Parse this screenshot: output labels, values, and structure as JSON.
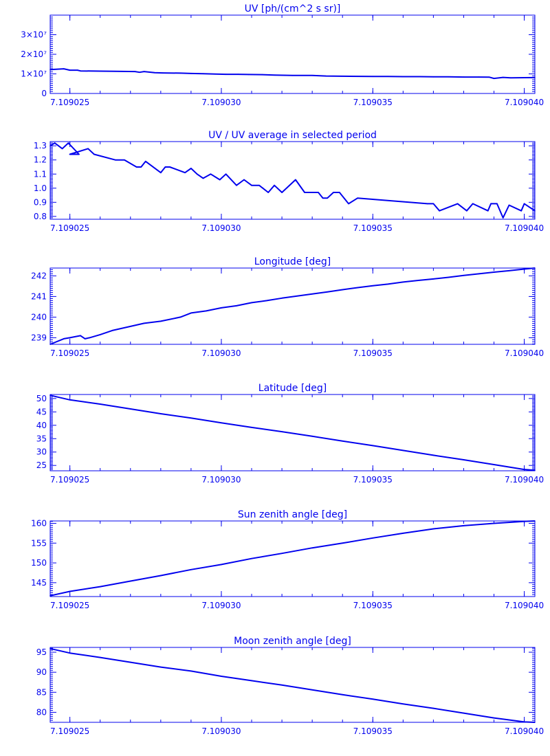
{
  "chart_data": [
    {
      "type": "line",
      "title": "UV [ph/(cm^2 s sr)]",
      "x_tick_labels": [
        "7.109025",
        "7.109030",
        "7.109035",
        "7.109040"
      ],
      "x_ticks": [
        7.109025,
        7.10903,
        7.109035,
        7.10904
      ],
      "xlim": [
        7.10902435,
        7.10904035
      ],
      "ylim": [
        0,
        40000000
      ],
      "y_tick_labels": [
        "0",
        "1×10⁷",
        "2×10⁷",
        "3×10⁷"
      ],
      "y_ticks": [
        0,
        10000000,
        20000000,
        30000000
      ],
      "x": [
        7.10902435,
        7.1090248,
        7.109025,
        7.10902525,
        7.10902535,
        7.109026,
        7.1090265,
        7.10902715,
        7.1090273,
        7.10902745,
        7.1090278,
        7.10902805,
        7.10902865,
        7.109029,
        7.1090294,
        7.1090298,
        7.10903015,
        7.10903055,
        7.1090309,
        7.10903135,
        7.10903175,
        7.10903235,
        7.109033,
        7.10903345,
        7.10903395,
        7.109035,
        7.1090355,
        7.109036,
        7.10903655,
        7.109037,
        7.1090375,
        7.109038,
        7.1090385,
        7.10903885,
        7.109039,
        7.1090393,
        7.10903955,
        7.10904035
      ],
      "values": [
        12200000,
        12600000,
        11900000,
        11900000,
        11500000,
        11400000,
        11300000,
        11200000,
        10800000,
        11200000,
        10600000,
        10500000,
        10400000,
        10200000,
        10100000,
        9900000,
        9800000,
        9800000,
        9700000,
        9600000,
        9400000,
        9200000,
        9200000,
        8900000,
        8800000,
        8700000,
        8700000,
        8600000,
        8600000,
        8500000,
        8500000,
        8400000,
        8400000,
        8300000,
        7700000,
        8200000,
        8000000,
        8100000
      ]
    },
    {
      "type": "line",
      "title": "UV / UV average in selected period",
      "x_tick_labels": [
        "7.109025",
        "7.109030",
        "7.109035",
        "7.109040"
      ],
      "x_ticks": [
        7.109025,
        7.10903,
        7.109035,
        7.10904
      ],
      "xlim": [
        7.10902435,
        7.10904035
      ],
      "ylim": [
        0.78,
        1.33
      ],
      "y_tick_labels": [
        "0.8",
        "0.9",
        "1.0",
        "1.1",
        "1.2",
        "1.3"
      ],
      "y_ticks": [
        0.8,
        0.9,
        1.0,
        1.1,
        1.2,
        1.3
      ],
      "x": [
        7.10902435,
        7.1090245,
        7.10902475,
        7.10902495,
        7.1090253,
        7.109025,
        7.1090256,
        7.1090258,
        7.1090265,
        7.1090268,
        7.1090272,
        7.10902735,
        7.1090275,
        7.109028,
        7.10902815,
        7.1090283,
        7.1090288,
        7.109029,
        7.1090292,
        7.1090294,
        7.10902965,
        7.10902995,
        7.10903015,
        7.1090305,
        7.10903075,
        7.109031,
        7.10903125,
        7.10903155,
        7.10903175,
        7.109032,
        7.10903245,
        7.10903275,
        7.1090332,
        7.10903335,
        7.1090335,
        7.1090337,
        7.1090339,
        7.1090342,
        7.1090345,
        7.1090368,
        7.109037,
        7.1090372,
        7.1090378,
        7.1090381,
        7.1090383,
        7.1090388,
        7.1090389,
        7.1090391,
        7.1090393,
        7.1090395,
        7.1090399,
        7.10904,
        7.10904035
      ],
      "values": [
        1.3,
        1.32,
        1.28,
        1.32,
        1.24,
        1.24,
        1.28,
        1.24,
        1.2,
        1.2,
        1.15,
        1.15,
        1.19,
        1.11,
        1.15,
        1.15,
        1.11,
        1.14,
        1.1,
        1.07,
        1.1,
        1.06,
        1.1,
        1.02,
        1.06,
        1.02,
        1.02,
        0.97,
        1.02,
        0.97,
        1.06,
        0.97,
        0.97,
        0.93,
        0.93,
        0.97,
        0.97,
        0.89,
        0.93,
        0.89,
        0.89,
        0.84,
        0.89,
        0.84,
        0.89,
        0.84,
        0.89,
        0.89,
        0.79,
        0.88,
        0.84,
        0.89,
        0.84
      ]
    },
    {
      "type": "line",
      "title": "Longitude [deg]",
      "x_tick_labels": [
        "7.109025",
        "7.109030",
        "7.109035",
        "7.109040"
      ],
      "x_ticks": [
        7.109025,
        7.10903,
        7.109035,
        7.10904
      ],
      "xlim": [
        7.10902435,
        7.10904035
      ],
      "ylim": [
        238.68,
        242.38
      ],
      "y_tick_labels": [
        "239",
        "240",
        "241",
        "242"
      ],
      "y_ticks": [
        239,
        240,
        241,
        242
      ],
      "x": [
        7.10902435,
        7.1090248,
        7.109025,
        7.10902535,
        7.1090255,
        7.10902565,
        7.109026,
        7.1090264,
        7.109027,
        7.10902745,
        7.109028,
        7.10902865,
        7.109029,
        7.1090295,
        7.10903,
        7.1090305,
        7.109031,
        7.1090315,
        7.109032,
        7.1090325,
        7.109033,
        7.1090335,
        7.109034,
        7.1090345,
        7.109035,
        7.1090355,
        7.109036,
        7.1090365,
        7.109037,
        7.1090375,
        7.109038,
        7.1090385,
        7.109039,
        7.1090395,
        7.10904,
        7.10904035
      ],
      "values": [
        238.68,
        238.95,
        239.0,
        239.1,
        238.95,
        239.0,
        239.15,
        239.35,
        239.55,
        239.7,
        239.8,
        240.0,
        240.2,
        240.3,
        240.45,
        240.55,
        240.7,
        240.8,
        240.92,
        241.02,
        241.12,
        241.22,
        241.33,
        241.43,
        241.52,
        241.6,
        241.7,
        241.78,
        241.85,
        241.93,
        242.02,
        242.1,
        242.18,
        242.25,
        242.33,
        242.38
      ]
    },
    {
      "type": "line",
      "title": "Latitude [deg]",
      "x_tick_labels": [
        "7.109025",
        "7.109030",
        "7.109035",
        "7.109040"
      ],
      "x_ticks": [
        7.109025,
        7.10903,
        7.109035,
        7.10904
      ],
      "xlim": [
        7.10902435,
        7.10904035
      ],
      "ylim": [
        23,
        51.5
      ],
      "y_tick_labels": [
        "25",
        "30",
        "35",
        "40",
        "45",
        "50"
      ],
      "y_ticks": [
        25,
        30,
        35,
        40,
        45,
        50
      ],
      "x": [
        7.10902435,
        7.109025,
        7.109026,
        7.109027,
        7.109028,
        7.109029,
        7.10903,
        7.109031,
        7.109032,
        7.109033,
        7.109034,
        7.109035,
        7.109036,
        7.109037,
        7.109038,
        7.109039,
        7.10904,
        7.10904035
      ],
      "values": [
        51.2,
        49.5,
        47.9,
        46.1,
        44.3,
        42.7,
        40.9,
        39.2,
        37.6,
        35.9,
        34.1,
        32.4,
        30.6,
        28.8,
        27.1,
        25.3,
        23.5,
        23.2
      ]
    },
    {
      "type": "line",
      "title": "Sun zenith angle [deg]",
      "x_tick_labels": [
        "7.109025",
        "7.109030",
        "7.109035",
        "7.109040"
      ],
      "x_ticks": [
        7.109025,
        7.10903,
        7.109035,
        7.10904
      ],
      "xlim": [
        7.10902435,
        7.10904035
      ],
      "ylim": [
        141.5,
        160.6
      ],
      "y_tick_labels": [
        "145",
        "150",
        "155",
        "160"
      ],
      "y_ticks": [
        145,
        150,
        155,
        160
      ],
      "x": [
        7.10902435,
        7.109025,
        7.109026,
        7.109027,
        7.109028,
        7.109029,
        7.10903,
        7.109031,
        7.109032,
        7.109033,
        7.109034,
        7.109035,
        7.109036,
        7.109037,
        7.109038,
        7.109039,
        7.10904,
        7.10904035
      ],
      "values": [
        141.7,
        142.8,
        144.0,
        145.4,
        146.8,
        148.3,
        149.6,
        151.1,
        152.4,
        153.8,
        155.0,
        156.3,
        157.5,
        158.6,
        159.4,
        160.0,
        160.5,
        160.6
      ]
    },
    {
      "type": "line",
      "title": "Moon zenith angle [deg]",
      "x_tick_labels": [
        "7.109025",
        "7.109030",
        "7.109035",
        "7.109040"
      ],
      "x_ticks": [
        7.109025,
        7.10903,
        7.109035,
        7.10904
      ],
      "xlim": [
        7.10902435,
        7.10904035
      ],
      "ylim": [
        77.5,
        96.2
      ],
      "y_tick_labels": [
        "80",
        "85",
        "90",
        "95"
      ],
      "y_ticks": [
        80,
        85,
        90,
        95
      ],
      "x": [
        7.10902435,
        7.109025,
        7.109026,
        7.109027,
        7.109028,
        7.109029,
        7.10903,
        7.109031,
        7.109032,
        7.109033,
        7.109034,
        7.109035,
        7.109036,
        7.109037,
        7.109038,
        7.109039,
        7.10904,
        7.10904035
      ],
      "values": [
        95.9,
        94.8,
        93.7,
        92.5,
        91.3,
        90.3,
        89.0,
        87.9,
        86.8,
        85.6,
        84.4,
        83.3,
        82.1,
        81.0,
        79.8,
        78.6,
        77.6,
        77.5
      ]
    }
  ],
  "colors": {
    "axis": "#0000ee",
    "line": "#0000ee",
    "background": "#ffffff"
  }
}
